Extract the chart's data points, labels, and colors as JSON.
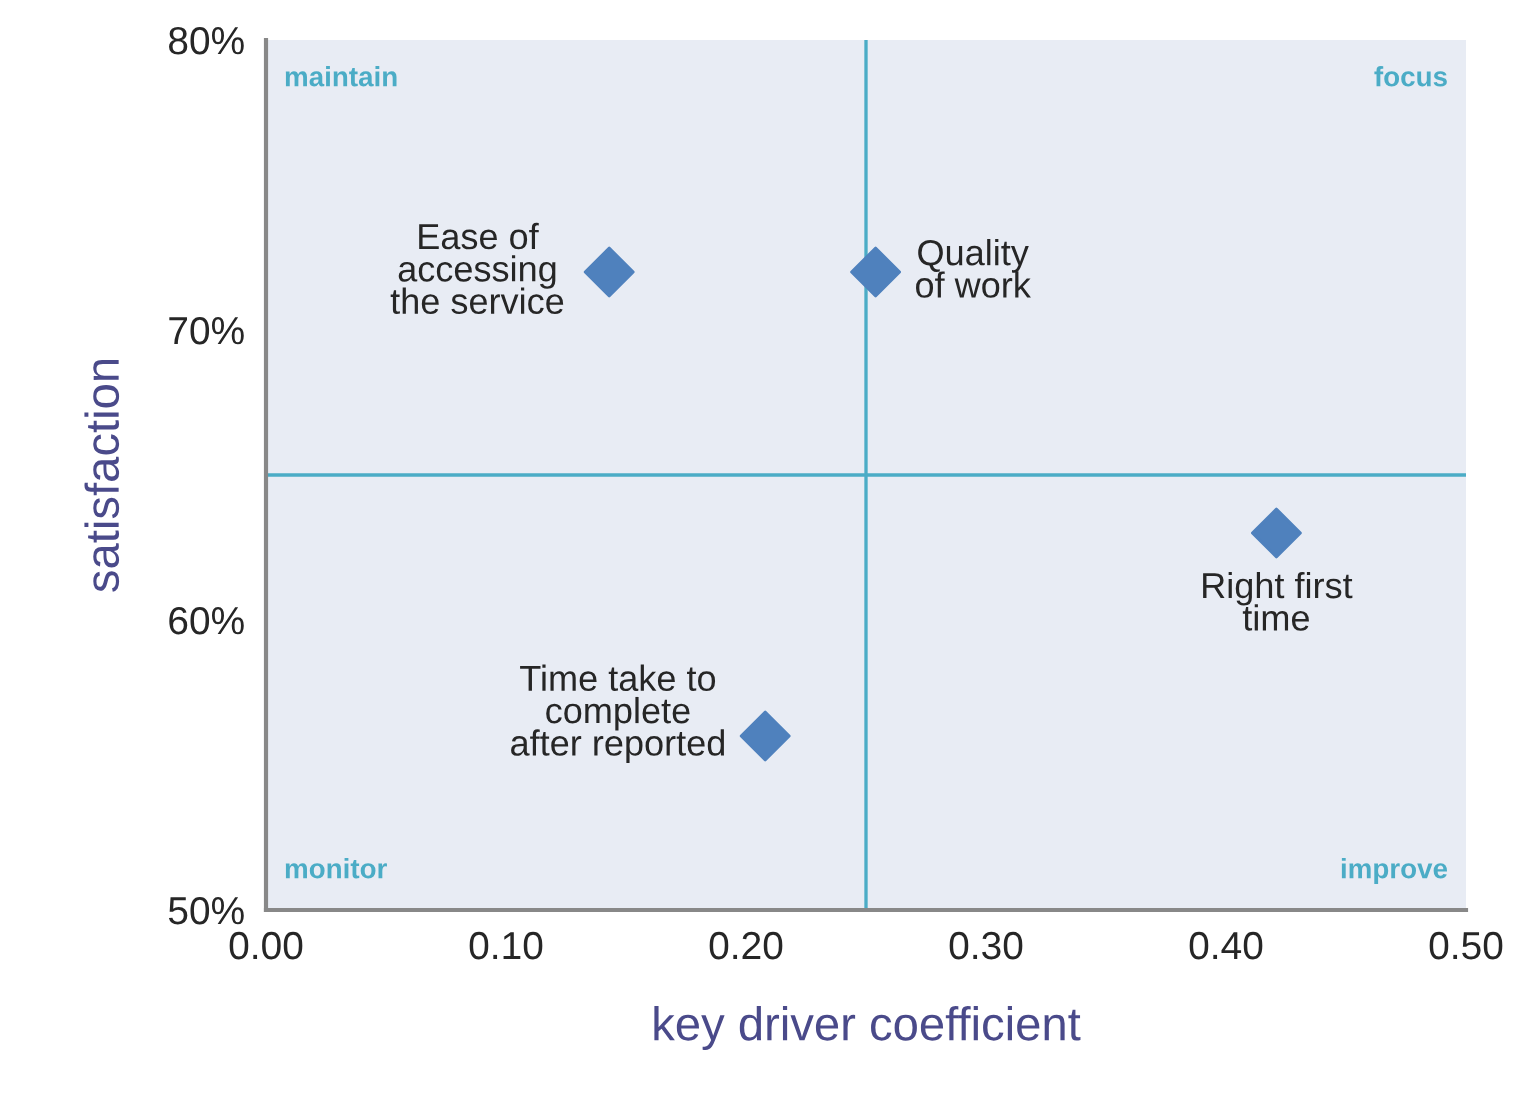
{
  "chart_data": {
    "type": "scatter",
    "xlabel": "key driver coefficient",
    "ylabel": "satisfaction",
    "series": [
      {
        "color": "#4f81bd",
        "x": [
          0.143,
          0.254,
          0.421,
          0.208
        ],
        "values": [
          72,
          72,
          63,
          56
        ]
      }
    ],
    "marker": "diamond",
    "xlim": [
      0,
      0.5
    ],
    "xticks": [
      {
        "value": 0,
        "label": "0.00"
      },
      {
        "value": 0.1,
        "label": "0.10"
      },
      {
        "value": 0.2,
        "label": "0.20"
      },
      {
        "value": 0.3,
        "label": "0.30"
      },
      {
        "value": 0.4,
        "label": "0.40"
      },
      {
        "value": 0.5,
        "label": "0.50"
      }
    ],
    "ylim": [
      50,
      80
    ],
    "yticks": [
      {
        "value": 50,
        "label": "50%"
      },
      {
        "value": 60,
        "label": "60%"
      },
      {
        "value": 70,
        "label": "70%"
      },
      {
        "value": 80,
        "label": "80%"
      }
    ],
    "grid": false,
    "legend": false,
    "ref_lines": [
      {
        "axis": "x",
        "value": 0.25,
        "color": "#4bacc6"
      },
      {
        "axis": "y",
        "value": 65,
        "color": "#4bacc6"
      }
    ],
    "annotations": [
      {
        "text": "Ease of\naccessing\nthe service",
        "x": 0.143,
        "y": 72
      },
      {
        "text": "Quality\nof work",
        "x": 0.254,
        "y": 72
      },
      {
        "text": "Right first\ntime",
        "x": 0.421,
        "y": 63
      },
      {
        "text": "Time take to\ncomplete\nafter reported",
        "x": 0.208,
        "y": 56
      },
      "maintain",
      "focus",
      "monitor",
      "improve"
    ]
  }
}
